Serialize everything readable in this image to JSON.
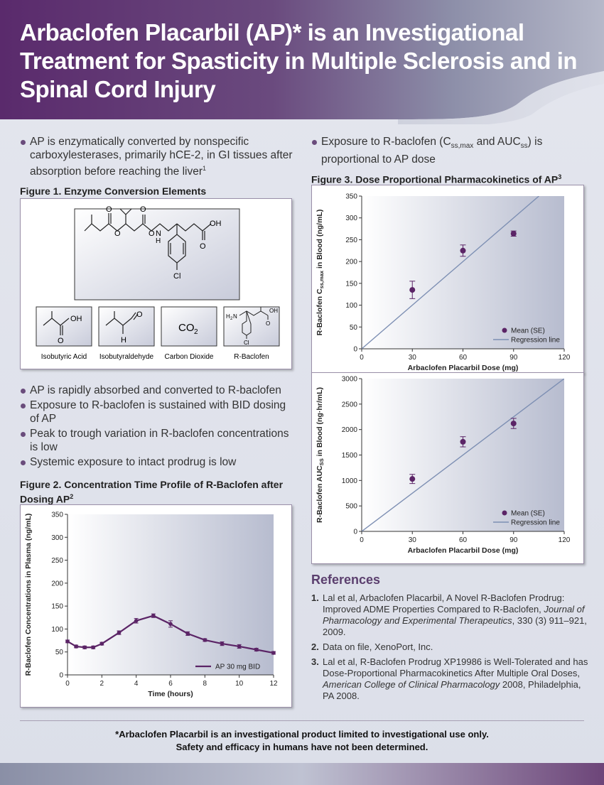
{
  "title": "Arbaclofen Placarbil (AP)* is an Investigational Treatment for Spasticity in Multiple Sclerosis and in Spinal Cord Injury",
  "left_col": {
    "bullet_top": "AP is enzymatically converted by nonspecific carboxylesterases, primarily hCE-2, in GI tissues after absorption before reaching the liver",
    "bullet_top_sup": "1",
    "fig1_title": "Figure 1. Enzyme Conversion Elements",
    "fig1": {
      "main_labels": [
        "O",
        "O",
        "O",
        "O",
        "OH",
        "H",
        "N",
        "O",
        "Cl"
      ],
      "small_molecules": [
        {
          "name": "Isobutyric Acid",
          "atoms": [
            "OH",
            "O"
          ]
        },
        {
          "name": "Isobutyraldehyde",
          "atoms": [
            "O",
            "H"
          ]
        },
        {
          "name": "Carbon Dioxide",
          "atoms": [
            "CO",
            "2"
          ]
        },
        {
          "name": "R-Baclofen",
          "atoms": [
            "H",
            "2",
            "N",
            "OH",
            "O",
            "Cl"
          ]
        }
      ]
    },
    "bullets_mid": [
      "AP is rapidly absorbed and converted to R-baclofen",
      "Exposure to R-baclofen is sustained with BID dosing of AP",
      "Peak to trough variation in R-baclofen concentrations is low",
      "Systemic exposure to intact prodrug is low"
    ],
    "fig2_title": "Figure 2. Concentration Time Profile of R-Baclofen after Dosing AP",
    "fig2_title_sup": "2"
  },
  "right_col": {
    "bullet_top_a": "Exposure to R-baclofen (C",
    "bullet_top_sub1": "ss,max",
    "bullet_top_b": " and AUC",
    "bullet_top_sub2": "ss",
    "bullet_top_c": ") is proportional to AP dose",
    "fig3_title": "Figure 3. Dose Proportional Pharmacokinetics of AP",
    "fig3_title_sup": "3"
  },
  "references": {
    "title": "References",
    "items": [
      {
        "num": "1.",
        "pre": "Lal et al, Arbaclofen Placarbil, A Novel R-Baclofen Prodrug: Improved ADME Properties Compared to R-Baclofen, ",
        "journal": "Journal of Pharmacology and Experimental Therapeutics",
        "post": ", 330 (3) 911–921, 2009."
      },
      {
        "num": "2.",
        "pre": "Data on file, XenoPort, Inc.",
        "journal": "",
        "post": ""
      },
      {
        "num": "3.",
        "pre": "Lal et al, R-Baclofen Prodrug XP19986 is Well-Tolerated and has Dose-Proportional Pharmacokinetics After Multiple Oral Doses, ",
        "journal": "American College of Clinical Pharmacology",
        "post": " 2008, Philadelphia, PA 2008."
      }
    ]
  },
  "disclaimer_line1": "*Arbaclofen Placarbil is an investigational product limited to investigational use only.",
  "disclaimer_line2": "Safety and efficacy in humans have not been determined.",
  "colors": {
    "purple": "#5a2a6c",
    "series": "#5b2466",
    "regression": "#7d8fb3"
  },
  "chart_data": [
    {
      "type": "line",
      "id": "fig2",
      "xlabel": "Time (hours)",
      "ylabel": "R-Baclofen Concentrations in Plasma (ng/mL)",
      "xlim": [
        0,
        12
      ],
      "ylim": [
        0,
        350
      ],
      "xticks": [
        0,
        2,
        4,
        6,
        8,
        10,
        12
      ],
      "yticks": [
        0,
        50,
        100,
        150,
        200,
        250,
        300,
        350
      ],
      "series": [
        {
          "name": "AP 30 mg BID",
          "x": [
            0,
            0.5,
            1,
            1.5,
            2,
            3,
            4,
            5,
            6,
            7,
            8,
            9,
            10,
            11,
            12
          ],
          "y": [
            73,
            62,
            60,
            60,
            68,
            92,
            118,
            129,
            111,
            90,
            76,
            68,
            62,
            55,
            48
          ],
          "err": [
            3,
            3,
            3,
            3,
            3,
            4,
            5,
            4,
            7,
            4,
            3,
            4,
            4,
            3,
            3
          ]
        }
      ],
      "legend": "bottom-right",
      "grid": false
    },
    {
      "type": "scatter",
      "id": "fig3a",
      "xlabel": "Arbaclofen Placarbil Dose (mg)",
      "ylabel_a": "R-Baclofen C",
      "ylabel_sub": "ss,max",
      "ylabel_b": " in Blood (ng/mL)",
      "xlim": [
        0,
        120
      ],
      "ylim": [
        0,
        350
      ],
      "xticks": [
        0,
        30,
        60,
        90,
        120
      ],
      "yticks": [
        0,
        50,
        100,
        150,
        200,
        250,
        300,
        350
      ],
      "series": [
        {
          "name": "Mean (SE)",
          "x": [
            30,
            60,
            90
          ],
          "y": [
            135,
            225,
            264
          ],
          "err": [
            20,
            13,
            6
          ]
        },
        {
          "name": "Regression line",
          "x": [
            0,
            105
          ],
          "y": [
            0,
            350
          ]
        }
      ],
      "legend": "bottom-right",
      "grid": false
    },
    {
      "type": "scatter",
      "id": "fig3b",
      "xlabel": "Arbaclofen Placarbil Dose (mg)",
      "ylabel_a": "R-Baclofen AUC",
      "ylabel_sub": "SS",
      "ylabel_b": " in Blood (ng·hr/mL)",
      "xlim": [
        0,
        120
      ],
      "ylim": [
        0,
        3000
      ],
      "xticks": [
        0,
        30,
        60,
        90,
        120
      ],
      "yticks": [
        0,
        500,
        1000,
        1500,
        2000,
        2500,
        3000
      ],
      "series": [
        {
          "name": "Mean (SE)",
          "x": [
            30,
            60,
            90
          ],
          "y": [
            1030,
            1760,
            2120
          ],
          "err": [
            90,
            100,
            100
          ]
        },
        {
          "name": "Regression line",
          "x": [
            0,
            120
          ],
          "y": [
            0,
            3000
          ]
        }
      ],
      "legend": "bottom-right",
      "grid": false
    }
  ]
}
